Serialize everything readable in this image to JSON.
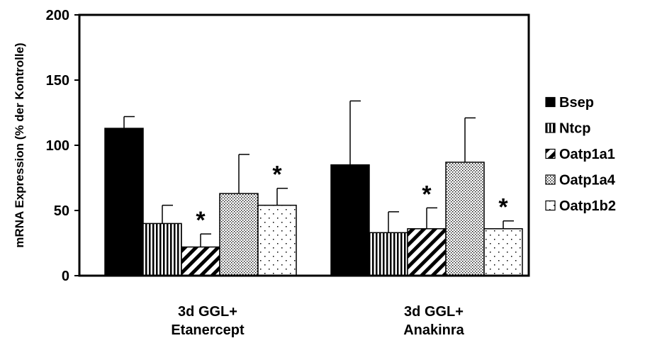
{
  "chart_data": {
    "type": "bar",
    "title": "",
    "xlabel": "",
    "ylabel": "mRNA Expression (% der Kontrolle)",
    "ylim": [
      0,
      200
    ],
    "yticks": [
      0,
      50,
      100,
      150,
      200
    ],
    "categories": [
      {
        "line1": "3d GGL+",
        "line2": "Etanercept"
      },
      {
        "line1": "3d GGL+",
        "line2": "Anakinra"
      }
    ],
    "series": [
      {
        "name": "Bsep",
        "pattern": "solid",
        "values": [
          113,
          85
        ],
        "errors": [
          9,
          49
        ],
        "significant": [
          false,
          false
        ]
      },
      {
        "name": "Ntcp",
        "pattern": "vertical",
        "values": [
          40,
          33
        ],
        "errors": [
          14,
          16
        ],
        "significant": [
          false,
          false
        ]
      },
      {
        "name": "Oatp1a1",
        "pattern": "diagonal",
        "values": [
          22,
          36
        ],
        "errors": [
          10,
          16
        ],
        "significant": [
          true,
          true
        ]
      },
      {
        "name": "Oatp1a4",
        "pattern": "dense-dots",
        "values": [
          63,
          87
        ],
        "errors": [
          30,
          34
        ],
        "significant": [
          false,
          false
        ]
      },
      {
        "name": "Oatp1b2",
        "pattern": "sparse-dots",
        "values": [
          54,
          36
        ],
        "errors": [
          13,
          6
        ],
        "significant": [
          true,
          true
        ]
      }
    ],
    "significance_marker": "*",
    "grid": false,
    "legend_position": "right"
  }
}
